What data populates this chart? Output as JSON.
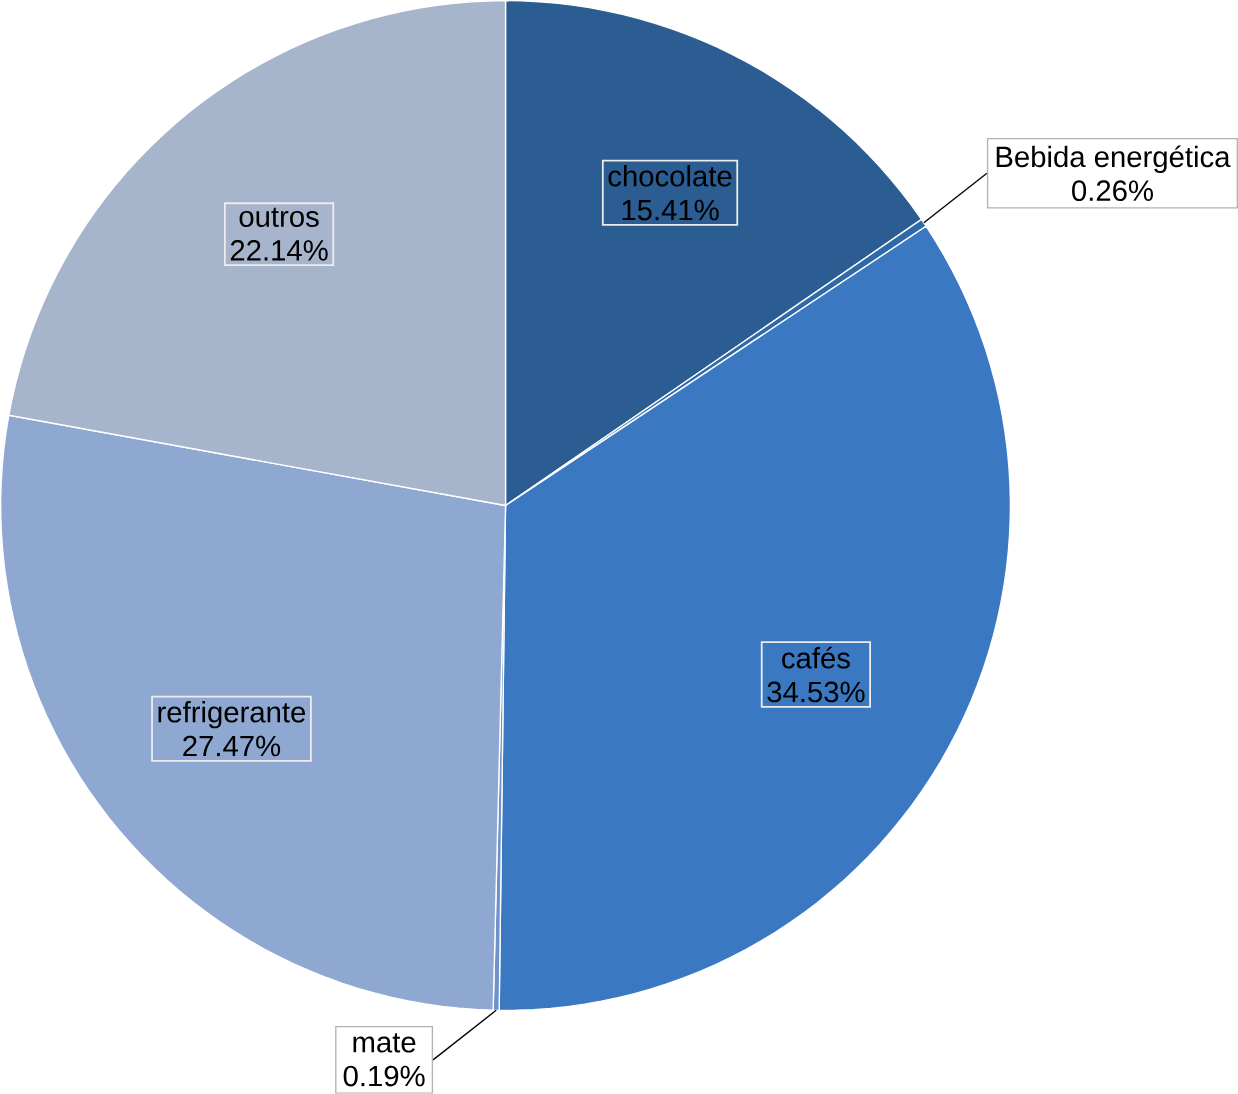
{
  "chart_data": {
    "type": "pie",
    "categories": [
      "chocolate",
      "Bebida energética",
      "cafés",
      "mate",
      "refrigerante",
      "outros"
    ],
    "values": [
      15.41,
      0.26,
      34.53,
      0.19,
      27.47,
      22.14
    ],
    "colors": [
      "#2b5c92",
      "#2f6aa8",
      "#3b78c2",
      "#6f93c8",
      "#8ea8d2",
      "#a7b5cc"
    ],
    "value_labels": [
      "15.41%",
      "0.26%",
      "34.53%",
      "0.19%",
      "27.47%",
      "22.14%"
    ]
  }
}
